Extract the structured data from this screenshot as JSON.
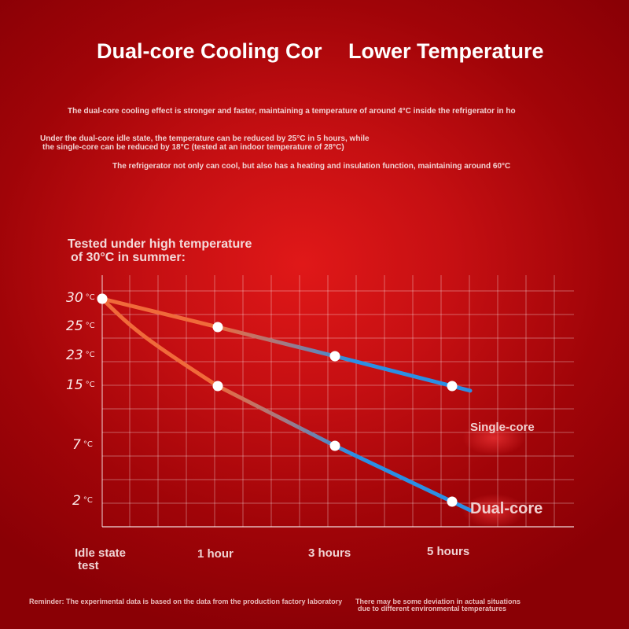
{
  "header": {
    "title_part1": "Dual-core Cooling Cor",
    "title_part2": "Lower Temperature",
    "line1": "The dual-core cooling effect is stronger and faster, maintaining a temperature of around 4°C inside the refrigerator in ho",
    "line2a": "Under the dual-core idle state, the temperature can be reduced by 25°C in 5 hours, while",
    "line2b": "the single-core can be reduced by 18°C (tested at an indoor temperature of 28°C)",
    "line3": "The refrigerator not only can cool, but also has a heating and insulation function, maintaining around 60°C"
  },
  "chart_subtitle": {
    "line1": "Tested under high temperature",
    "line2": "of 30°C in summer:"
  },
  "footer": {
    "left": "Reminder: The experimental data is based on the data from the production factory laboratory",
    "right_line1": "There may be some deviation in actual situations",
    "right_line2": "due to different environmental temperatures"
  },
  "colors": {
    "start_line": "#f06a3a",
    "mid_line": "#a07a86",
    "end_line": "#2b8fe4",
    "marker": "#ffffff",
    "grid": "rgba(255,255,255,0.35)"
  },
  "chart_data": {
    "type": "line",
    "categories": [
      "Idle state test",
      "1 hour",
      "3 hours",
      "5 hours"
    ],
    "x_labels": [
      {
        "line1": "Idle state",
        "line2": "test"
      },
      {
        "line1": "1 hour",
        "line2": ""
      },
      {
        "line1": "3 hours",
        "line2": ""
      },
      {
        "line1": "5 hours",
        "line2": ""
      }
    ],
    "y_ticks": [
      {
        "value": 30,
        "label": "30",
        "unit": "°C"
      },
      {
        "value": 25,
        "label": "25",
        "unit": "°C"
      },
      {
        "value": 23,
        "label": "23",
        "unit": "°C"
      },
      {
        "value": 15,
        "label": "15",
        "unit": "°C"
      },
      {
        "value": 7,
        "label": "7",
        "unit": "°C"
      },
      {
        "value": 2,
        "label": "2",
        "unit": "°C"
      }
    ],
    "series": [
      {
        "name": "Single-core",
        "values": [
          30,
          25,
          23,
          15
        ]
      },
      {
        "name": "Dual-core",
        "values": [
          30,
          15,
          7,
          2
        ]
      }
    ],
    "grid": true,
    "legend": "right, at line ends"
  }
}
